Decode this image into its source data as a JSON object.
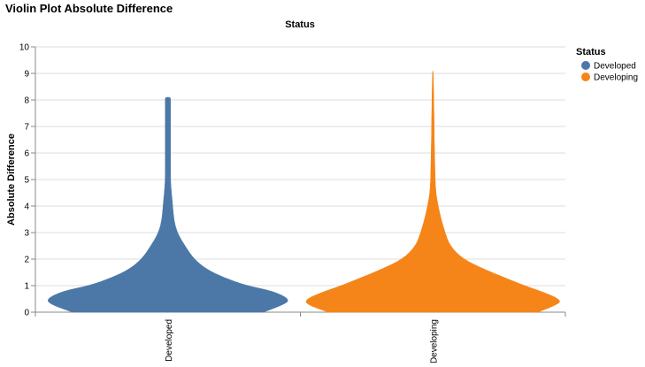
{
  "chart_data": {
    "type": "violin",
    "title": "Violin Plot Absolute Difference",
    "column_header": "Status",
    "ylabel": "Absolute Difference",
    "ylim": [
      0,
      10
    ],
    "y_ticks": [
      0,
      1,
      2,
      3,
      4,
      5,
      6,
      7,
      8,
      9,
      10
    ],
    "grid": true,
    "categories": [
      "Developed",
      "Developing"
    ],
    "legend": {
      "title": "Status",
      "position": "top-right",
      "items": [
        {
          "label": "Developed",
          "color": "#4c78a8"
        },
        {
          "label": "Developing",
          "color": "#f58518"
        }
      ]
    },
    "series": [
      {
        "category": "Developed",
        "color": "#4c78a8",
        "max": 8.1,
        "density": [
          [
            0,
            0.73
          ],
          [
            0.3,
            0.9
          ],
          [
            0.5,
            0.93
          ],
          [
            0.8,
            0.8
          ],
          [
            1.0,
            0.6
          ],
          [
            1.3,
            0.43
          ],
          [
            1.6,
            0.3
          ],
          [
            2.0,
            0.2
          ],
          [
            2.5,
            0.13
          ],
          [
            3.0,
            0.07
          ],
          [
            3.5,
            0.045
          ],
          [
            4.0,
            0.037
          ],
          [
            4.5,
            0.027
          ],
          [
            5.0,
            0.02
          ],
          [
            6.0,
            0.02
          ],
          [
            7.0,
            0.02
          ],
          [
            8.0,
            0.02
          ],
          [
            8.1,
            0.02
          ]
        ]
      },
      {
        "category": "Developing",
        "color": "#f58518",
        "max": 9.1,
        "density": [
          [
            0,
            0.8
          ],
          [
            0.3,
            0.97
          ],
          [
            0.5,
            0.97
          ],
          [
            0.8,
            0.82
          ],
          [
            1.0,
            0.7
          ],
          [
            1.3,
            0.55
          ],
          [
            1.6,
            0.4
          ],
          [
            2.0,
            0.23
          ],
          [
            2.5,
            0.13
          ],
          [
            3.0,
            0.093
          ],
          [
            3.5,
            0.063
          ],
          [
            4.0,
            0.04
          ],
          [
            4.5,
            0.023
          ],
          [
            5.0,
            0.017
          ],
          [
            6.0,
            0.013
          ],
          [
            7.0,
            0.01
          ],
          [
            8.0,
            0.007
          ],
          [
            9.0,
            0.003
          ],
          [
            9.1,
            0.0
          ]
        ]
      }
    ]
  }
}
